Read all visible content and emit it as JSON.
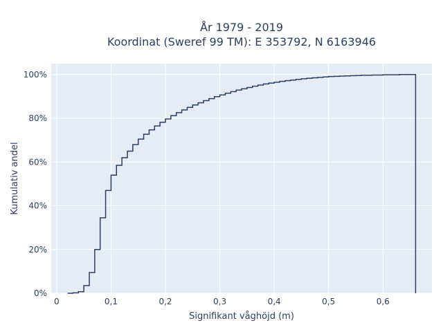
{
  "chart_data": {
    "type": "line",
    "step": true,
    "title_lines": [
      "År 1979 - 2019",
      "Koordinat (Sweref 99 TM): E 353792, N 6163946"
    ],
    "xlabel": "Signifikant våghöjd (m)",
    "ylabel": "Kumulativ andel",
    "xlim": [
      -0.01,
      0.69
    ],
    "ylim": [
      0,
      1.05
    ],
    "xticks": [
      {
        "value": 0,
        "label": "0"
      },
      {
        "value": 0.1,
        "label": "0,1"
      },
      {
        "value": 0.2,
        "label": "0,2"
      },
      {
        "value": 0.3,
        "label": "0,3"
      },
      {
        "value": 0.4,
        "label": "0,4"
      },
      {
        "value": 0.5,
        "label": "0,5"
      },
      {
        "value": 0.6,
        "label": "0,6"
      }
    ],
    "yticks": [
      {
        "value": 0,
        "label": "0%"
      },
      {
        "value": 0.2,
        "label": "20%"
      },
      {
        "value": 0.4,
        "label": "40%"
      },
      {
        "value": 0.6,
        "label": "60%"
      },
      {
        "value": 0.8,
        "label": "80%"
      },
      {
        "value": 1.0,
        "label": "100%"
      }
    ],
    "grid": true,
    "colors": {
      "background": "#e5ecf6",
      "grid": "#ffffff",
      "line": "#2a3f5f"
    },
    "series": [
      {
        "x": [
          0.02,
          0.03,
          0.04,
          0.05,
          0.06,
          0.07,
          0.08,
          0.09,
          0.1,
          0.11,
          0.12,
          0.13,
          0.14,
          0.15,
          0.16,
          0.17,
          0.18,
          0.19,
          0.2,
          0.21,
          0.22,
          0.23,
          0.24,
          0.25,
          0.26,
          0.27,
          0.28,
          0.29,
          0.3,
          0.31,
          0.32,
          0.33,
          0.34,
          0.35,
          0.36,
          0.37,
          0.38,
          0.39,
          0.4,
          0.41,
          0.42,
          0.43,
          0.44,
          0.45,
          0.46,
          0.47,
          0.48,
          0.49,
          0.5,
          0.51,
          0.52,
          0.53,
          0.54,
          0.55,
          0.56,
          0.57,
          0.58,
          0.59,
          0.6,
          0.61,
          0.62,
          0.63,
          0.64,
          0.65,
          0.66
        ],
        "y": [
          0.0,
          0.002,
          0.007,
          0.035,
          0.095,
          0.2,
          0.345,
          0.47,
          0.54,
          0.585,
          0.62,
          0.65,
          0.68,
          0.705,
          0.727,
          0.747,
          0.765,
          0.782,
          0.797,
          0.812,
          0.826,
          0.838,
          0.85,
          0.861,
          0.871,
          0.881,
          0.89,
          0.899,
          0.907,
          0.915,
          0.922,
          0.929,
          0.935,
          0.941,
          0.947,
          0.952,
          0.957,
          0.961,
          0.965,
          0.969,
          0.972,
          0.975,
          0.978,
          0.981,
          0.983,
          0.985,
          0.987,
          0.989,
          0.991,
          0.992,
          0.993,
          0.994,
          0.995,
          0.996,
          0.997,
          0.997,
          0.998,
          0.998,
          0.999,
          0.999,
          0.999,
          1.0,
          1.0,
          1.0,
          1.0
        ]
      }
    ]
  }
}
